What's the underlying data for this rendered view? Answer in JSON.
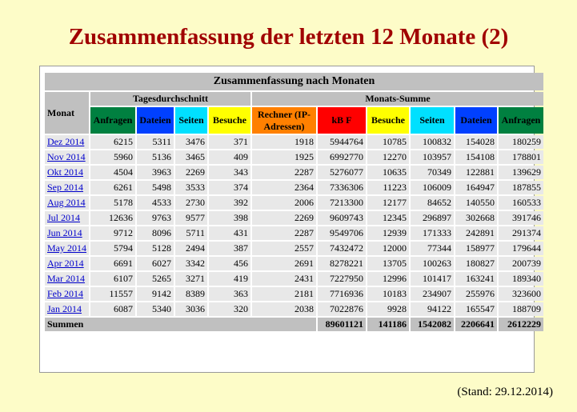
{
  "title": "Zusammenfassung der letzten 12 Monate (2)",
  "table": {
    "caption": "Zusammenfassung nach Monaten",
    "group_headers": [
      "Monat",
      "Tagesdurchschnitt",
      "Monats-Summe"
    ],
    "columns": [
      "Anfragen",
      "Dateien",
      "Seiten",
      "Besuche",
      "Rechner (IP-Adressen)",
      "kB F",
      "Besuche",
      "Seiten",
      "Dateien",
      "Anfragen"
    ],
    "rows": [
      {
        "month": "Dez 2014",
        "values": [
          6215,
          5311,
          3476,
          371,
          1918,
          5944764,
          10785,
          100832,
          154028,
          180259
        ]
      },
      {
        "month": "Nov 2014",
        "values": [
          5960,
          5136,
          3465,
          409,
          1925,
          6992770,
          12270,
          103957,
          154108,
          178801
        ]
      },
      {
        "month": "Okt 2014",
        "values": [
          4504,
          3963,
          2269,
          343,
          2287,
          5276077,
          10635,
          70349,
          122881,
          139629
        ]
      },
      {
        "month": "Sep 2014",
        "values": [
          6261,
          5498,
          3533,
          374,
          2364,
          7336306,
          11223,
          106009,
          164947,
          187855
        ]
      },
      {
        "month": "Aug 2014",
        "values": [
          5178,
          4533,
          2730,
          392,
          2006,
          7213300,
          12177,
          84652,
          140550,
          160533
        ]
      },
      {
        "month": "Jul 2014",
        "values": [
          12636,
          9763,
          9577,
          398,
          2269,
          9609743,
          12345,
          296897,
          302668,
          391746
        ]
      },
      {
        "month": "Jun 2014",
        "values": [
          9712,
          8096,
          5711,
          431,
          2287,
          9549706,
          12939,
          171333,
          242891,
          291374
        ]
      },
      {
        "month": "May 2014",
        "values": [
          5794,
          5128,
          2494,
          387,
          2557,
          7432472,
          12000,
          77344,
          158977,
          179644
        ]
      },
      {
        "month": "Apr 2014",
        "values": [
          6691,
          6027,
          3342,
          456,
          2691,
          8278221,
          13705,
          100263,
          180827,
          200739
        ]
      },
      {
        "month": "Mar 2014",
        "values": [
          6107,
          5265,
          3271,
          419,
          2431,
          7227950,
          12996,
          101417,
          163241,
          189340
        ]
      },
      {
        "month": "Feb 2014",
        "values": [
          11557,
          9142,
          8389,
          363,
          2181,
          7716936,
          10183,
          234907,
          255976,
          323600
        ]
      },
      {
        "month": "Jan 2014",
        "values": [
          6087,
          5340,
          3036,
          320,
          2038,
          7022876,
          9928,
          94122,
          165547,
          188709
        ]
      }
    ],
    "totals": {
      "label": "Summen",
      "values": [
        89601121,
        141186,
        1542082,
        2206641,
        2612229
      ]
    }
  },
  "footnote": "(Stand: 29.12.2014)"
}
